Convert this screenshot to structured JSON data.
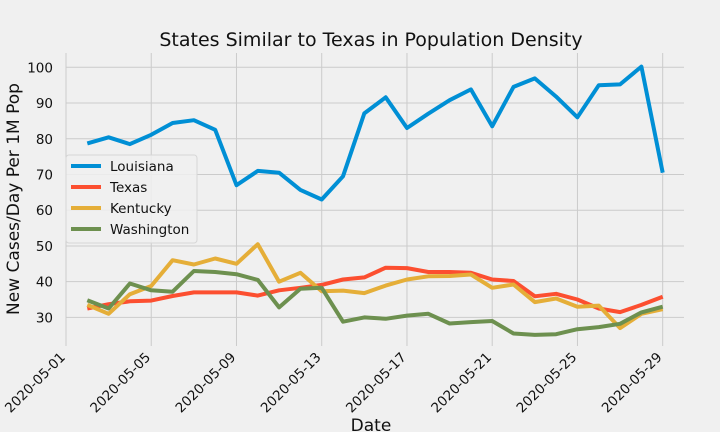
{
  "chart_data": {
    "type": "line",
    "title": "States Similar to Texas in Population Density",
    "xlabel": "Date",
    "ylabel": "New Cases/Day Per 1M Pop",
    "x": [
      "2020-05-02",
      "2020-05-03",
      "2020-05-04",
      "2020-05-05",
      "2020-05-06",
      "2020-05-07",
      "2020-05-08",
      "2020-05-09",
      "2020-05-10",
      "2020-05-11",
      "2020-05-12",
      "2020-05-13",
      "2020-05-14",
      "2020-05-15",
      "2020-05-16",
      "2020-05-17",
      "2020-05-18",
      "2020-05-19",
      "2020-05-20",
      "2020-05-21",
      "2020-05-22",
      "2020-05-23",
      "2020-05-24",
      "2020-05-25",
      "2020-05-26",
      "2020-05-27",
      "2020-05-28",
      "2020-05-29"
    ],
    "xlim": [
      "2020-05-01",
      "2020-05-30"
    ],
    "xticks": [
      "2020-05-01",
      "2020-05-05",
      "2020-05-09",
      "2020-05-13",
      "2020-05-17",
      "2020-05-21",
      "2020-05-25",
      "2020-05-29"
    ],
    "ylim": [
      22,
      104
    ],
    "yticks": [
      30,
      40,
      50,
      60,
      70,
      80,
      90,
      100
    ],
    "grid": true,
    "legend_position": "center-left",
    "series": [
      {
        "name": "Louisiana",
        "color": "#008fd5",
        "values": [
          78.7,
          80.4,
          78.5,
          81.1,
          84.4,
          85.2,
          82.5,
          67.0,
          71.0,
          70.5,
          65.7,
          63.0,
          69.5,
          87.1,
          91.6,
          83.0,
          87.0,
          90.8,
          93.8,
          83.5,
          94.5,
          96.9,
          91.8,
          86.0,
          95.0,
          95.2,
          100.2,
          70.5
        ]
      },
      {
        "name": "Texas",
        "color": "#fc4f30",
        "values": [
          32.5,
          33.7,
          34.5,
          34.7,
          36.0,
          37.0,
          37.0,
          37.0,
          36.1,
          37.6,
          38.3,
          39.1,
          40.6,
          41.2,
          43.9,
          43.8,
          42.7,
          42.7,
          42.5,
          40.6,
          40.2,
          35.9,
          36.6,
          35.0,
          32.5,
          31.5,
          33.5,
          35.8
        ]
      },
      {
        "name": "Kentucky",
        "color": "#e5ae38",
        "values": [
          33.5,
          31.0,
          36.5,
          38.8,
          46.0,
          44.8,
          46.5,
          45.0,
          50.5,
          40.0,
          42.5,
          37.3,
          37.5,
          36.8,
          38.9,
          40.6,
          41.5,
          41.6,
          42.0,
          38.3,
          39.2,
          34.3,
          35.3,
          33.0,
          33.3,
          27.0,
          31.0,
          32.3
        ]
      },
      {
        "name": "Washington",
        "color": "#6d904f",
        "values": [
          34.8,
          32.5,
          39.5,
          37.6,
          37.2,
          43.0,
          42.7,
          42.1,
          40.5,
          32.8,
          38.0,
          38.3,
          28.8,
          30.0,
          29.6,
          30.5,
          31.0,
          28.3,
          28.7,
          29.0,
          25.5,
          25.1,
          25.3,
          26.7,
          27.3,
          28.2,
          31.4,
          33.0
        ]
      }
    ]
  }
}
